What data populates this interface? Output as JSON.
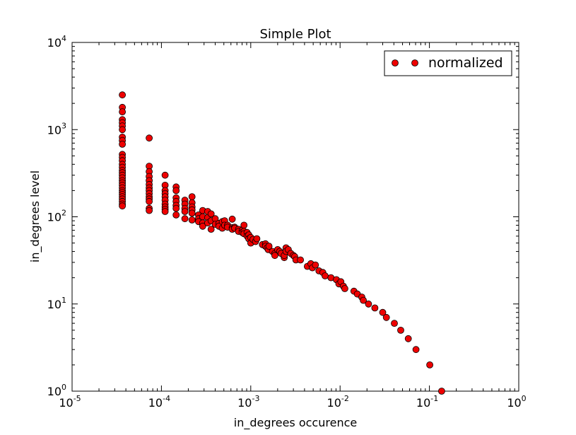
{
  "chart_data": {
    "type": "scatter",
    "title": "Simple Plot",
    "xlabel": "in_degrees occurence",
    "ylabel": "in_degrees level",
    "xscale": "log",
    "yscale": "log",
    "xlim": [
      1e-05,
      1
    ],
    "ylim": [
      1,
      10000
    ],
    "x_ticks": [
      {
        "base": "10",
        "exp": "-5"
      },
      {
        "base": "10",
        "exp": "-4"
      },
      {
        "base": "10",
        "exp": "-3"
      },
      {
        "base": "10",
        "exp": "-2"
      },
      {
        "base": "10",
        "exp": "-1"
      },
      {
        "base": "10",
        "exp": "0"
      }
    ],
    "y_ticks": [
      {
        "base": "10",
        "exp": "0"
      },
      {
        "base": "10",
        "exp": "1"
      },
      {
        "base": "10",
        "exp": "2"
      },
      {
        "base": "10",
        "exp": "3"
      },
      {
        "base": "10",
        "exp": "4"
      }
    ],
    "legend_position": "top-right",
    "grid": false,
    "series": [
      {
        "name": "normalized",
        "marker": "circle",
        "color": "#ee0000",
        "edge_color": "#000000",
        "points": [
          [
            3.65e-05,
            2500
          ],
          [
            3.65e-05,
            1800
          ],
          [
            3.65e-05,
            1600
          ],
          [
            3.65e-05,
            1300
          ],
          [
            3.65e-05,
            1200
          ],
          [
            3.65e-05,
            1100
          ],
          [
            3.65e-05,
            1000
          ],
          [
            3.65e-05,
            820
          ],
          [
            3.65e-05,
            750
          ],
          [
            3.65e-05,
            680
          ],
          [
            3.65e-05,
            520
          ],
          [
            3.65e-05,
            480
          ],
          [
            3.65e-05,
            440
          ],
          [
            3.65e-05,
            400
          ],
          [
            3.65e-05,
            370
          ],
          [
            3.65e-05,
            340
          ],
          [
            3.65e-05,
            320
          ],
          [
            3.65e-05,
            300
          ],
          [
            3.65e-05,
            280
          ],
          [
            3.65e-05,
            260
          ],
          [
            3.65e-05,
            245
          ],
          [
            3.65e-05,
            230
          ],
          [
            3.65e-05,
            215
          ],
          [
            3.65e-05,
            200
          ],
          [
            3.65e-05,
            190
          ],
          [
            3.65e-05,
            180
          ],
          [
            3.65e-05,
            170
          ],
          [
            3.65e-05,
            160
          ],
          [
            3.65e-05,
            150
          ],
          [
            3.65e-05,
            140
          ],
          [
            3.65e-05,
            133
          ],
          [
            7.3e-05,
            800
          ],
          [
            7.3e-05,
            380
          ],
          [
            7.3e-05,
            330
          ],
          [
            7.3e-05,
            290
          ],
          [
            7.3e-05,
            260
          ],
          [
            7.3e-05,
            235
          ],
          [
            7.3e-05,
            215
          ],
          [
            7.3e-05,
            200
          ],
          [
            7.3e-05,
            185
          ],
          [
            7.3e-05,
            170
          ],
          [
            7.3e-05,
            160
          ],
          [
            7.3e-05,
            150
          ],
          [
            7.3e-05,
            125
          ],
          [
            7.3e-05,
            118
          ],
          [
            0.00011,
            300
          ],
          [
            0.00011,
            230
          ],
          [
            0.00011,
            200
          ],
          [
            0.00011,
            185
          ],
          [
            0.00011,
            170
          ],
          [
            0.00011,
            155
          ],
          [
            0.00011,
            140
          ],
          [
            0.00011,
            130
          ],
          [
            0.00011,
            122
          ],
          [
            0.00011,
            115
          ],
          [
            0.000146,
            220
          ],
          [
            0.000146,
            200
          ],
          [
            0.000146,
            165
          ],
          [
            0.000146,
            150
          ],
          [
            0.000146,
            135
          ],
          [
            0.000146,
            125
          ],
          [
            0.000146,
            105
          ],
          [
            0.000183,
            155
          ],
          [
            0.000183,
            140
          ],
          [
            0.000183,
            125
          ],
          [
            0.000183,
            115
          ],
          [
            0.000183,
            95
          ],
          [
            0.00022,
            170
          ],
          [
            0.00022,
            145
          ],
          [
            0.00022,
            130
          ],
          [
            0.00022,
            120
          ],
          [
            0.00022,
            110
          ],
          [
            0.00022,
            92
          ],
          [
            0.00026,
            105
          ],
          [
            0.00026,
            95
          ],
          [
            0.00026,
            88
          ],
          [
            0.00029,
            118
          ],
          [
            0.00029,
            100
          ],
          [
            0.00029,
            85
          ],
          [
            0.00029,
            78
          ],
          [
            0.00033,
            115
          ],
          [
            0.00033,
            98
          ],
          [
            0.00033,
            85
          ],
          [
            0.00036,
            108
          ],
          [
            0.00036,
            90
          ],
          [
            0.00036,
            72
          ],
          [
            0.0004,
            95
          ],
          [
            0.0004,
            82
          ],
          [
            0.00044,
            84
          ],
          [
            0.00044,
            78
          ],
          [
            0.00048,
            88
          ],
          [
            0.00048,
            74
          ],
          [
            0.00051,
            90
          ],
          [
            0.00051,
            80
          ],
          [
            0.00055,
            80
          ],
          [
            0.00055,
            76
          ],
          [
            0.00062,
            94
          ],
          [
            0.00062,
            75
          ],
          [
            0.00062,
            72
          ],
          [
            0.00066,
            76
          ],
          [
            0.00066,
            74
          ],
          [
            0.00073,
            72
          ],
          [
            0.00073,
            68
          ],
          [
            0.0008,
            70
          ],
          [
            0.0008,
            66
          ],
          [
            0.00084,
            80
          ],
          [
            0.00084,
            68
          ],
          [
            0.00084,
            64
          ],
          [
            0.00091,
            66
          ],
          [
            0.00091,
            60
          ],
          [
            0.00095,
            62
          ],
          [
            0.00095,
            56
          ],
          [
            0.001,
            58
          ],
          [
            0.001,
            50
          ],
          [
            0.00106,
            55
          ],
          [
            0.00113,
            52
          ],
          [
            0.00117,
            56
          ],
          [
            0.00135,
            48
          ],
          [
            0.00146,
            49
          ],
          [
            0.00146,
            46
          ],
          [
            0.00153,
            44
          ],
          [
            0.00157,
            42
          ],
          [
            0.0016,
            46
          ],
          [
            0.00175,
            40
          ],
          [
            0.00186,
            38
          ],
          [
            0.00186,
            36
          ],
          [
            0.002,
            42
          ],
          [
            0.00211,
            40
          ],
          [
            0.00219,
            38
          ],
          [
            0.00237,
            34
          ],
          [
            0.00237,
            36
          ],
          [
            0.00248,
            44
          ],
          [
            0.00248,
            40
          ],
          [
            0.00263,
            42
          ],
          [
            0.00281,
            38
          ],
          [
            0.003,
            36
          ],
          [
            0.0031,
            35
          ],
          [
            0.0032,
            32
          ],
          [
            0.0036,
            32
          ],
          [
            0.0043,
            27
          ],
          [
            0.0047,
            29
          ],
          [
            0.0049,
            26
          ],
          [
            0.0053,
            28
          ],
          [
            0.0058,
            24
          ],
          [
            0.0064,
            23
          ],
          [
            0.0068,
            21
          ],
          [
            0.0079,
            20
          ],
          [
            0.0091,
            19
          ],
          [
            0.0097,
            17
          ],
          [
            0.0102,
            18
          ],
          [
            0.0109,
            16
          ],
          [
            0.0113,
            15
          ],
          [
            0.0143,
            14
          ],
          [
            0.0156,
            13
          ],
          [
            0.0175,
            12
          ],
          [
            0.0182,
            11
          ],
          [
            0.0208,
            10
          ],
          [
            0.0245,
            9
          ],
          [
            0.03,
            8
          ],
          [
            0.033,
            7
          ],
          [
            0.0405,
            6
          ],
          [
            0.0477,
            5
          ],
          [
            0.058,
            4
          ],
          [
            0.0708,
            3
          ],
          [
            0.101,
            2
          ],
          [
            0.137,
            1
          ]
        ]
      }
    ]
  }
}
